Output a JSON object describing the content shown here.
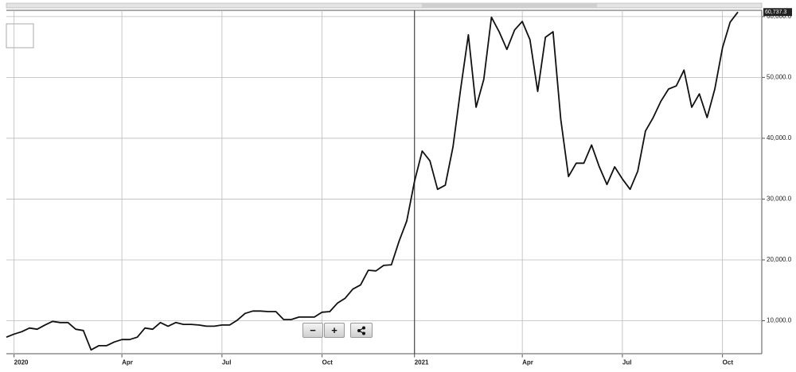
{
  "chart_data": {
    "type": "line",
    "categories": [
      null,
      "2020",
      null,
      null,
      null,
      null,
      null,
      null,
      null,
      null,
      null,
      null,
      null,
      null,
      null,
      "Apr",
      null,
      null,
      null,
      null,
      null,
      null,
      null,
      null,
      null,
      null,
      null,
      null,
      "Jul",
      null,
      null,
      null,
      null,
      null,
      null,
      null,
      null,
      null,
      null,
      null,
      null,
      "Oct",
      null,
      null,
      null,
      null,
      null,
      null,
      null,
      null,
      null,
      null,
      null,
      "2021",
      null,
      null,
      null,
      null,
      null,
      null,
      null,
      null,
      null,
      null,
      null,
      null,
      null,
      "Apr",
      null,
      null,
      null,
      null,
      null,
      null,
      null,
      null,
      null,
      null,
      null,
      null,
      "Jul",
      null,
      null,
      null,
      null,
      null,
      null,
      null,
      null,
      null,
      null,
      null,
      null,
      "Oct",
      null,
      null
    ],
    "values": [
      7300,
      7800,
      8200,
      8800,
      8600,
      9300,
      9900,
      9700,
      9700,
      8600,
      8400,
      5200,
      5900,
      5900,
      6500,
      6900,
      6900,
      7300,
      8800,
      8600,
      9700,
      9100,
      9700,
      9400,
      9400,
      9300,
      9100,
      9100,
      9300,
      9300,
      10100,
      11200,
      11600,
      11600,
      11500,
      11500,
      10200,
      10200,
      10600,
      10600,
      10600,
      11400,
      11500,
      12900,
      13700,
      15200,
      15900,
      18300,
      18200,
      19100,
      19200,
      23100,
      26400,
      32900,
      37900,
      36300,
      31600,
      32300,
      38600,
      48100,
      57000,
      45100,
      49700,
      59900,
      57500,
      54600,
      57800,
      59200,
      56200,
      47700,
      56600,
      57500,
      43100,
      33700,
      35900,
      35900,
      38900,
      35300,
      32400,
      35300,
      33300,
      31600,
      34600,
      41200,
      43400,
      46100,
      48100,
      48600,
      51200,
      45100,
      47300,
      43400,
      48100,
      54900,
      59100,
      60737.3
    ],
    "value_labels": [
      null,
      null,
      null,
      null,
      null,
      null,
      null,
      null,
      null,
      null,
      null,
      null,
      null,
      null,
      null,
      null,
      null,
      null,
      null,
      null,
      null,
      null,
      null,
      null,
      null,
      null,
      null,
      null,
      null,
      null,
      null,
      null,
      null,
      null,
      null,
      null,
      null,
      null,
      null,
      null,
      null,
      null,
      null,
      null,
      null,
      null,
      null,
      null,
      null,
      null,
      null,
      null,
      null,
      null,
      null,
      null,
      null,
      null,
      null,
      null,
      null,
      null,
      null,
      null,
      null,
      null,
      null,
      null,
      null,
      null,
      null,
      null,
      null,
      null,
      null,
      null,
      null,
      null,
      null,
      null,
      null,
      null,
      null,
      null,
      null,
      null,
      null,
      null,
      null,
      null,
      null,
      null,
      null,
      null,
      null,
      "60,737.3"
    ],
    "color": "#111111",
    "ylim": [
      4500,
      60900
    ],
    "yticks": [
      {
        "value": 10000,
        "label": "10,000.0"
      },
      {
        "value": 20000,
        "label": "20,000.0"
      },
      {
        "value": 30000,
        "label": "30,000.0"
      },
      {
        "value": 40000,
        "label": "40,000.0"
      },
      {
        "value": 50000,
        "label": "50,000.0"
      },
      {
        "value": 60000,
        "label": "60,000.0"
      }
    ],
    "grid": true
  },
  "controls": [
    "−",
    "+"
  ]
}
